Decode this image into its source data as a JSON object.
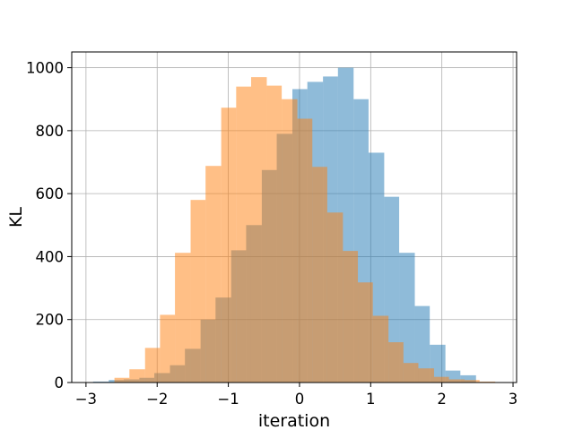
{
  "chart_data": {
    "type": "bar",
    "subtype": "overlapping-histogram",
    "title": "",
    "xlabel": "iteration",
    "ylabel": "KL",
    "xlim": [
      -3.2,
      3.05
    ],
    "ylim": [
      0,
      1050
    ],
    "xticks": [
      -3,
      -2,
      -1,
      0,
      1,
      2,
      3
    ],
    "xtick_labels": [
      "−3",
      "−2",
      "−1",
      "0",
      "1",
      "2",
      "3"
    ],
    "yticks": [
      0,
      200,
      400,
      600,
      800,
      1000
    ],
    "ytick_labels": [
      "0",
      "200",
      "400",
      "600",
      "800",
      "1000"
    ],
    "grid": true,
    "legend": "none",
    "series": [
      {
        "color": "#1f77b4",
        "alpha": 0.5,
        "bins": [
          [
            -2.9,
            -2.68,
            3
          ],
          [
            -2.68,
            -2.47,
            8
          ],
          [
            -2.47,
            -2.25,
            10
          ],
          [
            -2.25,
            -2.04,
            15
          ],
          [
            -2.04,
            -1.82,
            30
          ],
          [
            -1.82,
            -1.61,
            55
          ],
          [
            -1.61,
            -1.39,
            107
          ],
          [
            -1.39,
            -1.18,
            200
          ],
          [
            -1.18,
            -0.96,
            270
          ],
          [
            -0.96,
            -0.75,
            420
          ],
          [
            -0.75,
            -0.53,
            500
          ],
          [
            -0.53,
            -0.32,
            675
          ],
          [
            -0.32,
            -0.1,
            790
          ],
          [
            -0.1,
            0.11,
            932
          ],
          [
            0.11,
            0.33,
            955
          ],
          [
            0.33,
            0.54,
            972
          ],
          [
            0.54,
            0.76,
            1000
          ],
          [
            0.76,
            0.97,
            900
          ],
          [
            0.97,
            1.19,
            730
          ],
          [
            1.19,
            1.4,
            590
          ],
          [
            1.4,
            1.62,
            412
          ],
          [
            1.62,
            1.83,
            243
          ],
          [
            1.83,
            2.05,
            120
          ],
          [
            2.05,
            2.26,
            38
          ],
          [
            2.26,
            2.48,
            23
          ]
        ]
      },
      {
        "color": "#ff7f0e",
        "alpha": 0.5,
        "bins": [
          [
            -2.6,
            -2.39,
            15
          ],
          [
            -2.39,
            -2.17,
            42
          ],
          [
            -2.17,
            -1.96,
            110
          ],
          [
            -1.96,
            -1.75,
            215
          ],
          [
            -1.75,
            -1.53,
            412
          ],
          [
            -1.53,
            -1.32,
            580
          ],
          [
            -1.32,
            -1.1,
            688
          ],
          [
            -1.1,
            -0.89,
            873
          ],
          [
            -0.89,
            -0.68,
            940
          ],
          [
            -0.68,
            -0.46,
            970
          ],
          [
            -0.46,
            -0.25,
            943
          ],
          [
            -0.25,
            -0.03,
            900
          ],
          [
            -0.03,
            0.18,
            838
          ],
          [
            0.18,
            0.39,
            685
          ],
          [
            0.39,
            0.61,
            540
          ],
          [
            0.61,
            0.82,
            418
          ],
          [
            0.82,
            1.03,
            318
          ],
          [
            1.03,
            1.25,
            212
          ],
          [
            1.25,
            1.46,
            128
          ],
          [
            1.46,
            1.67,
            62
          ],
          [
            1.67,
            1.89,
            45
          ],
          [
            1.89,
            2.1,
            18
          ],
          [
            2.1,
            2.32,
            10
          ],
          [
            2.32,
            2.53,
            8
          ],
          [
            2.53,
            2.75,
            3
          ]
        ]
      }
    ]
  }
}
